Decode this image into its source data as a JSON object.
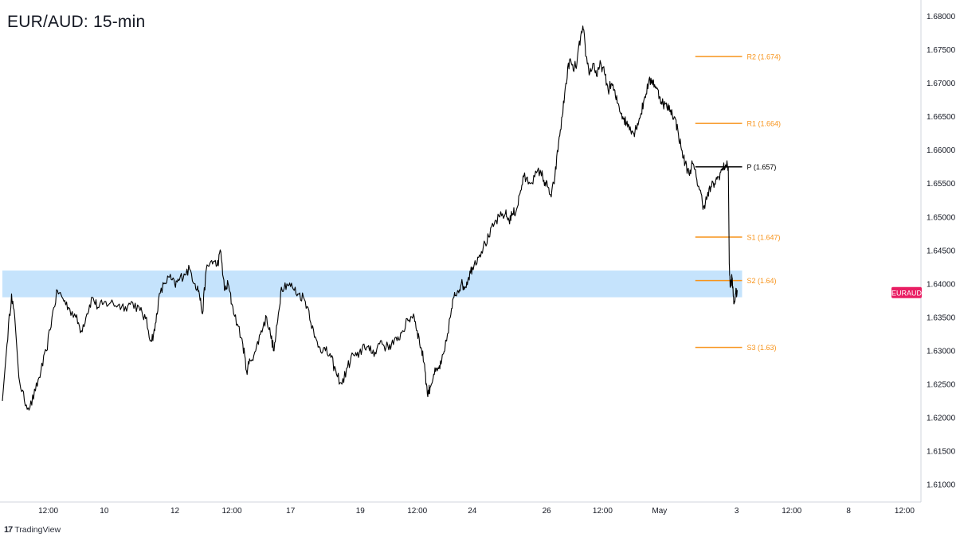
{
  "title": "EUR/AUD: 15-min",
  "brand": {
    "logo_text": "TradingView",
    "logo_icon": "tradingview-logo-icon"
  },
  "colors": {
    "price_line": "#000000",
    "pivot_line": "#000000",
    "support_resistance": "#f7931a",
    "zone_fill": "#bbdefb",
    "symbol_badge": "#e91e63",
    "axis_text": "#131722",
    "axis_line": "#d1d4dc"
  },
  "chart_data": {
    "type": "line",
    "symbol": "EURAUD",
    "timeframe": "15-min",
    "y_axis": {
      "range": [
        1.6075,
        1.6815
      ],
      "ticks": [
        1.61,
        1.615,
        1.62,
        1.625,
        1.63,
        1.635,
        1.64,
        1.645,
        1.65,
        1.655,
        1.66,
        1.665,
        1.67,
        1.675,
        1.68
      ],
      "tick_labels": [
        "1.61000",
        "1.61500",
        "1.62000",
        "1.62500",
        "1.63000",
        "1.63500",
        "1.64000",
        "1.64500",
        "1.65000",
        "1.65500",
        "1.66000",
        "1.66500",
        "1.67000",
        "1.67500",
        "1.68000"
      ]
    },
    "x_axis": {
      "range": [
        0,
        1000
      ],
      "ticks": [
        {
          "x": 50,
          "label": "12:00"
        },
        {
          "x": 111,
          "label": "10"
        },
        {
          "x": 188,
          "label": "12"
        },
        {
          "x": 250,
          "label": "12:00"
        },
        {
          "x": 314,
          "label": "17"
        },
        {
          "x": 390,
          "label": "19"
        },
        {
          "x": 452,
          "label": "12:00"
        },
        {
          "x": 512,
          "label": "24"
        },
        {
          "x": 593,
          "label": "26"
        },
        {
          "x": 654,
          "label": "12:00"
        },
        {
          "x": 716,
          "label": "May"
        },
        {
          "x": 800,
          "label": "3"
        },
        {
          "x": 860,
          "label": "12:00"
        },
        {
          "x": 922,
          "label": "8"
        },
        {
          "x": 983,
          "label": "12:00"
        }
      ]
    },
    "demand_zone": {
      "y_low": 1.638,
      "y_high": 1.642,
      "x_start": 0,
      "x_end": 806
    },
    "levels": [
      {
        "name": "R2",
        "label": "R2 (1.674)",
        "value": 1.674,
        "style": "resistance"
      },
      {
        "name": "R1",
        "label": "R1 (1.664)",
        "value": 1.664,
        "style": "resistance"
      },
      {
        "name": "P",
        "label": "P (1.657)",
        "value": 1.6575,
        "style": "pivot"
      },
      {
        "name": "S1",
        "label": "S1 (1.647)",
        "value": 1.647,
        "style": "support"
      },
      {
        "name": "S2",
        "label": "S2 (1.64)",
        "value": 1.6405,
        "style": "support"
      },
      {
        "name": "S3",
        "label": "S3 (1.63)",
        "value": 1.6305,
        "style": "support"
      }
    ],
    "levels_x_range": [
      755,
      806
    ],
    "price_marker": {
      "label": "EURAUD",
      "value": 1.6387
    },
    "series": [
      {
        "values": [
          [
            0,
            1.6225
          ],
          [
            5,
            1.631
          ],
          [
            10,
            1.6385
          ],
          [
            14,
            1.634
          ],
          [
            18,
            1.626
          ],
          [
            24,
            1.6225
          ],
          [
            30,
            1.6215
          ],
          [
            36,
            1.624
          ],
          [
            42,
            1.627
          ],
          [
            48,
            1.63
          ],
          [
            54,
            1.635
          ],
          [
            60,
            1.639
          ],
          [
            66,
            1.6378
          ],
          [
            72,
            1.6365
          ],
          [
            80,
            1.635
          ],
          [
            86,
            1.633
          ],
          [
            92,
            1.6355
          ],
          [
            98,
            1.638
          ],
          [
            104,
            1.6365
          ],
          [
            110,
            1.637
          ],
          [
            118,
            1.6372
          ],
          [
            126,
            1.6368
          ],
          [
            134,
            1.6366
          ],
          [
            142,
            1.6372
          ],
          [
            150,
            1.636
          ],
          [
            156,
            1.6348
          ],
          [
            162,
            1.6315
          ],
          [
            166,
            1.633
          ],
          [
            170,
            1.6375
          ],
          [
            176,
            1.64
          ],
          [
            182,
            1.641
          ],
          [
            188,
            1.6398
          ],
          [
            192,
            1.6405
          ],
          [
            198,
            1.6415
          ],
          [
            204,
            1.6422
          ],
          [
            210,
            1.64
          ],
          [
            214,
            1.639
          ],
          [
            218,
            1.6355
          ],
          [
            222,
            1.642
          ],
          [
            228,
            1.6435
          ],
          [
            234,
            1.6428
          ],
          [
            238,
            1.6448
          ],
          [
            242,
            1.639
          ],
          [
            246,
            1.64
          ],
          [
            250,
            1.637
          ],
          [
            256,
            1.634
          ],
          [
            262,
            1.631
          ],
          [
            266,
            1.627
          ],
          [
            270,
            1.6285
          ],
          [
            276,
            1.63
          ],
          [
            282,
            1.633
          ],
          [
            288,
            1.635
          ],
          [
            292,
            1.6325
          ],
          [
            296,
            1.63
          ],
          [
            300,
            1.6345
          ],
          [
            304,
            1.6395
          ],
          [
            310,
            1.64
          ],
          [
            316,
            1.6395
          ],
          [
            322,
            1.6385
          ],
          [
            328,
            1.638
          ],
          [
            334,
            1.636
          ],
          [
            340,
            1.632
          ],
          [
            346,
            1.6305
          ],
          [
            352,
            1.63
          ],
          [
            358,
            1.629
          ],
          [
            364,
            1.6265
          ],
          [
            370,
            1.625
          ],
          [
            376,
            1.6275
          ],
          [
            382,
            1.6295
          ],
          [
            388,
            1.629
          ],
          [
            394,
            1.631
          ],
          [
            400,
            1.63
          ],
          [
            406,
            1.6298
          ],
          [
            412,
            1.6315
          ],
          [
            418,
            1.6305
          ],
          [
            424,
            1.631
          ],
          [
            430,
            1.6315
          ],
          [
            436,
            1.633
          ],
          [
            442,
            1.6345
          ],
          [
            448,
            1.6355
          ],
          [
            452,
            1.633
          ],
          [
            456,
            1.6305
          ],
          [
            460,
            1.628
          ],
          [
            463,
            1.6235
          ],
          [
            466,
            1.6245
          ],
          [
            470,
            1.6265
          ],
          [
            474,
            1.627
          ],
          [
            478,
            1.628
          ],
          [
            482,
            1.63
          ],
          [
            488,
            1.635
          ],
          [
            492,
            1.638
          ],
          [
            496,
            1.639
          ],
          [
            500,
            1.64
          ],
          [
            504,
            1.6395
          ],
          [
            508,
            1.641
          ],
          [
            512,
            1.6425
          ],
          [
            518,
            1.644
          ],
          [
            524,
            1.6455
          ],
          [
            530,
            1.647
          ],
          [
            536,
            1.649
          ],
          [
            542,
            1.65
          ],
          [
            548,
            1.6505
          ],
          [
            552,
            1.6495
          ],
          [
            556,
            1.6505
          ],
          [
            560,
            1.651
          ],
          [
            564,
            1.6535
          ],
          [
            568,
            1.656
          ],
          [
            574,
            1.6552
          ],
          [
            580,
            1.656
          ],
          [
            586,
            1.657
          ],
          [
            590,
            1.6555
          ],
          [
            594,
            1.6545
          ],
          [
            598,
            1.653
          ],
          [
            602,
            1.656
          ],
          [
            606,
            1.661
          ],
          [
            610,
            1.665
          ],
          [
            614,
            1.67
          ],
          [
            618,
            1.6735
          ],
          [
            622,
            1.672
          ],
          [
            626,
            1.673
          ],
          [
            630,
            1.677
          ],
          [
            633,
            1.678
          ],
          [
            636,
            1.674
          ],
          [
            640,
            1.6715
          ],
          [
            644,
            1.673
          ],
          [
            648,
            1.671
          ],
          [
            652,
            1.673
          ],
          [
            656,
            1.6715
          ],
          [
            660,
            1.669
          ],
          [
            664,
            1.67
          ],
          [
            668,
            1.668
          ],
          [
            672,
            1.6665
          ],
          [
            676,
            1.665
          ],
          [
            680,
            1.664
          ],
          [
            684,
            1.6635
          ],
          [
            688,
            1.6625
          ],
          [
            692,
            1.664
          ],
          [
            696,
            1.6655
          ],
          [
            700,
            1.668
          ],
          [
            704,
            1.67
          ],
          [
            708,
            1.6705
          ],
          [
            712,
            1.6695
          ],
          [
            716,
            1.668
          ],
          [
            720,
            1.667
          ],
          [
            724,
            1.6665
          ],
          [
            728,
            1.666
          ],
          [
            732,
            1.665
          ],
          [
            736,
            1.663
          ],
          [
            740,
            1.66
          ],
          [
            744,
            1.658
          ],
          [
            748,
            1.6565
          ],
          [
            752,
            1.658
          ],
          [
            756,
            1.656
          ],
          [
            760,
            1.654
          ],
          [
            764,
            1.6515
          ],
          [
            768,
            1.653
          ],
          [
            772,
            1.6545
          ],
          [
            776,
            1.655
          ],
          [
            780,
            1.656
          ],
          [
            784,
            1.657
          ],
          [
            788,
            1.6578
          ],
          [
            791,
            1.6575
          ],
          [
            792,
            1.643
          ],
          [
            793,
            1.6395
          ],
          [
            795,
            1.641
          ],
          [
            797,
            1.637
          ],
          [
            799,
            1.6385
          ],
          [
            801,
            1.639
          ]
        ]
      }
    ]
  }
}
